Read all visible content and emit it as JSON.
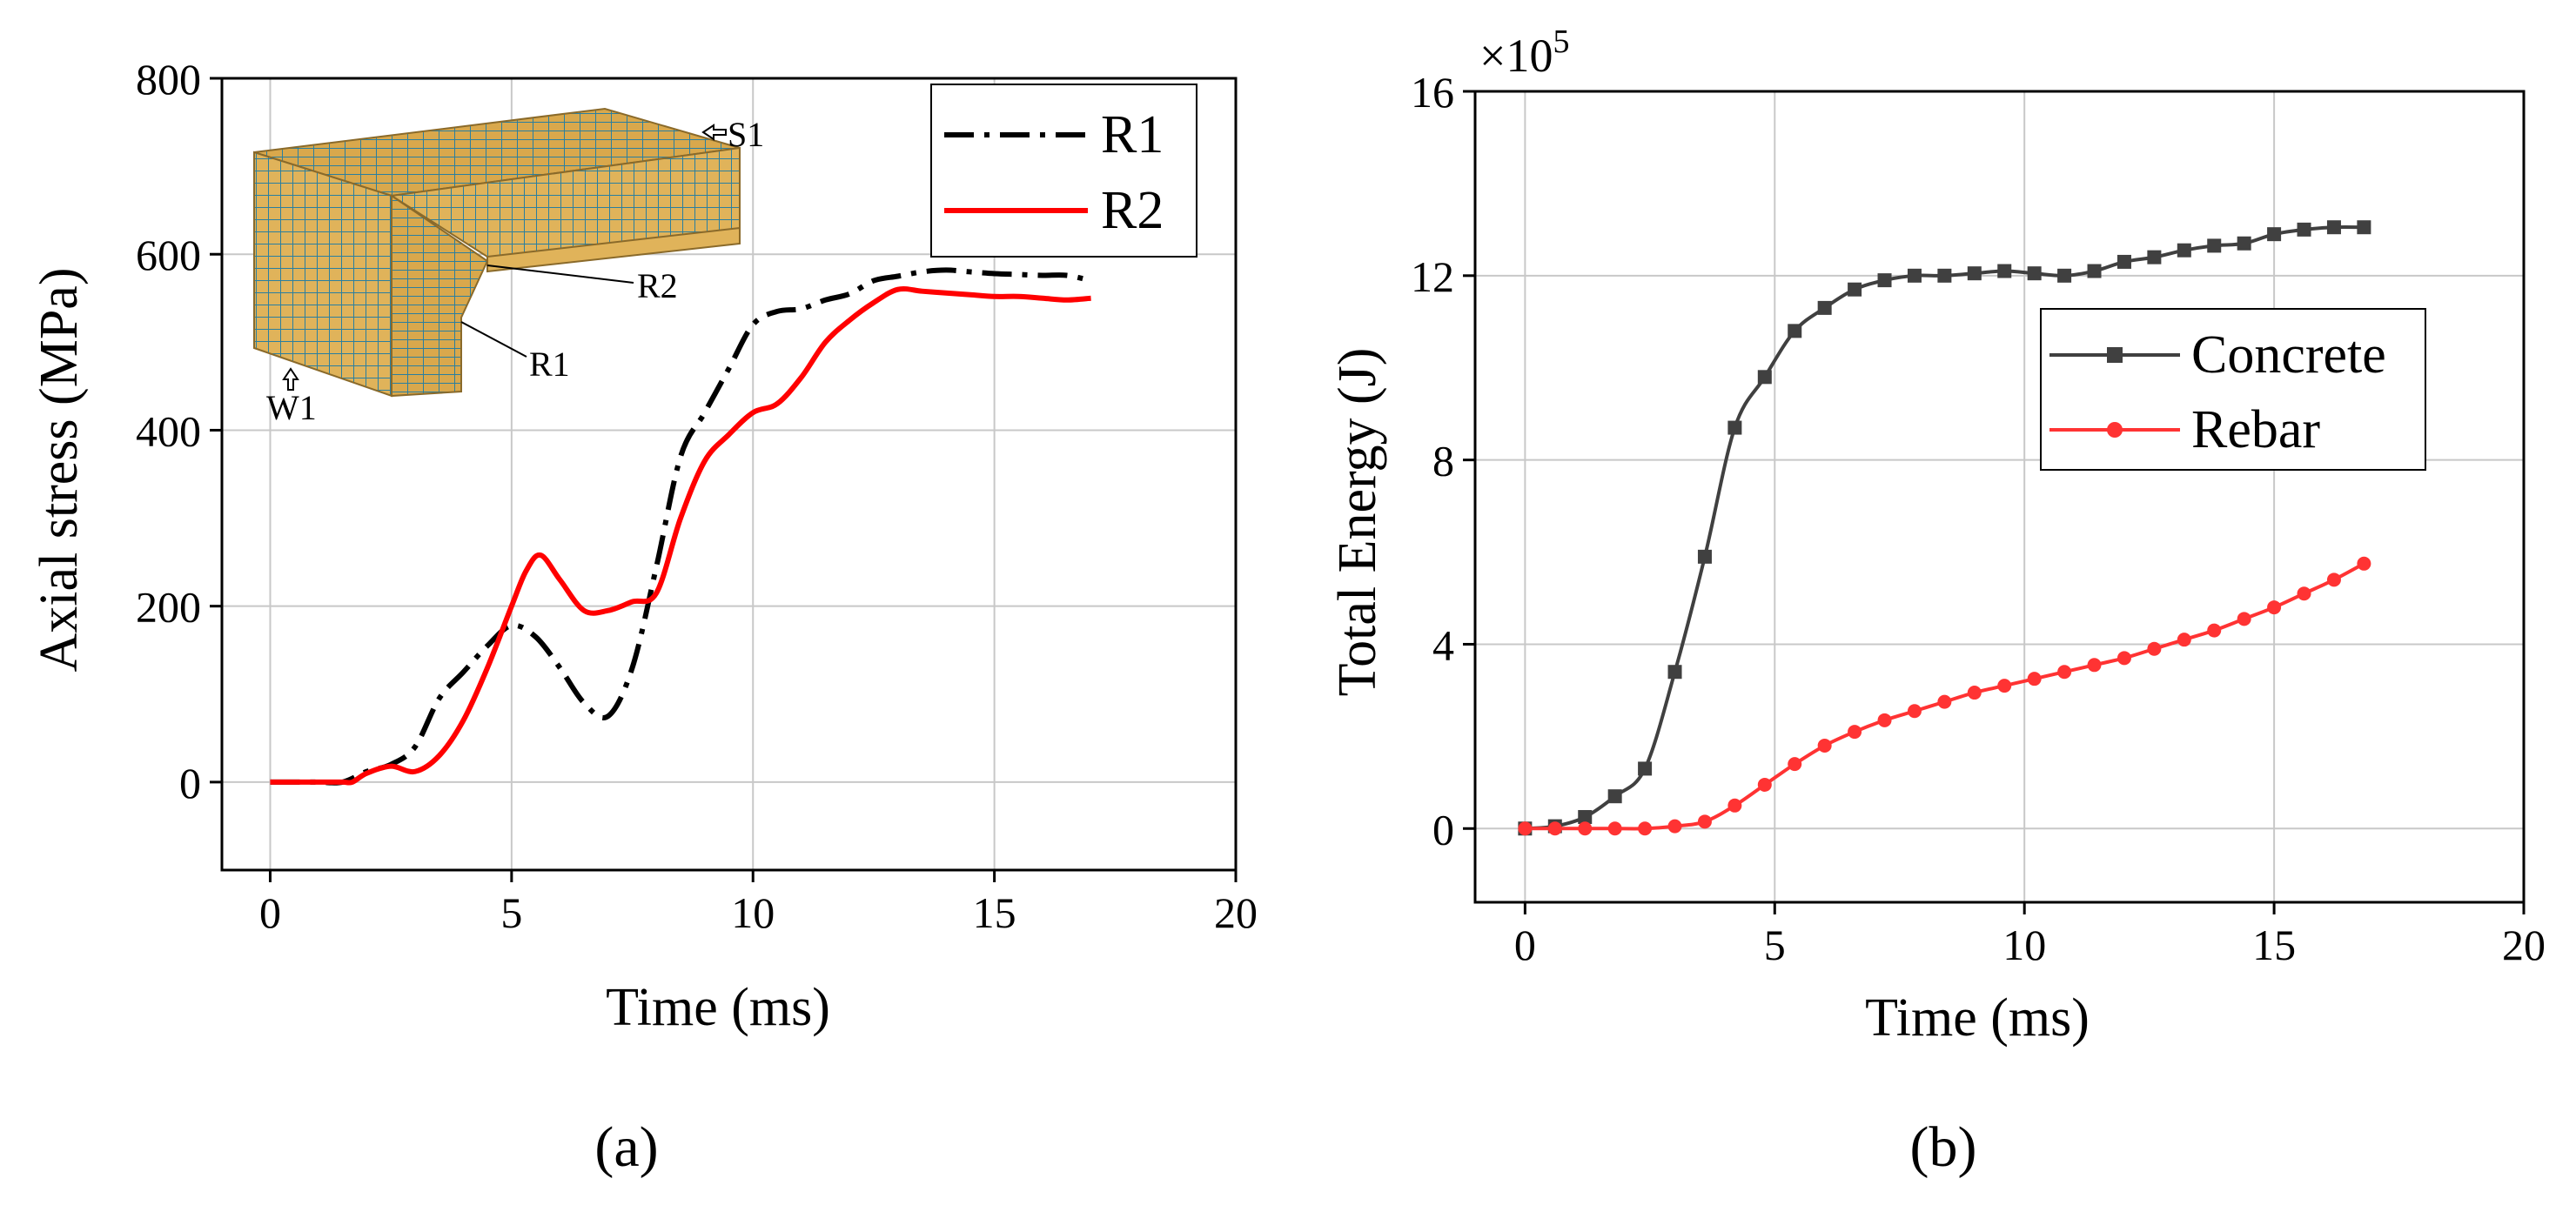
{
  "panel_labels": {
    "a": "(a)",
    "b": "(b)"
  },
  "chart_data": [
    {
      "type": "line",
      "panel": "(a)",
      "xlabel": "Time (ms)",
      "ylabel": "Axial stress (MPa)",
      "xlim": [
        -1,
        20
      ],
      "ylim": [
        -100,
        800
      ],
      "xticks": [
        "0",
        "5",
        "10",
        "15",
        "20"
      ],
      "yticks": [
        "0",
        "200",
        "400",
        "600",
        "800"
      ],
      "grid": true,
      "legend_position": "top-right",
      "inset": {
        "description_labels": {
          "s1": "S1",
          "w1": "W1",
          "r1": "R1",
          "r2": "R2"
        }
      },
      "series": [
        {
          "name": "R1",
          "color": "#000000",
          "dash": "dash-dot",
          "x": [
            0,
            0.5,
            1,
            1.5,
            2,
            2.5,
            3,
            3.5,
            4,
            4.5,
            5,
            5.5,
            6,
            6.5,
            7,
            7.5,
            8,
            8.5,
            9,
            9.5,
            10,
            10.5,
            11,
            11.5,
            12,
            12.5,
            13,
            13.5,
            14,
            14.5,
            15,
            15.5,
            16,
            16.5,
            17
          ],
          "y": [
            0,
            0,
            0,
            0,
            12,
            20,
            40,
            95,
            125,
            155,
            178,
            165,
            130,
            90,
            75,
            130,
            245,
            370,
            420,
            470,
            520,
            535,
            538,
            548,
            555,
            570,
            575,
            580,
            582,
            580,
            578,
            577,
            576,
            576,
            570
          ]
        },
        {
          "name": "R2",
          "color": "#ff0000",
          "dash": "solid",
          "x": [
            0,
            0.5,
            1,
            1.5,
            1.7,
            2,
            2.5,
            3,
            3.5,
            4,
            4.5,
            5,
            5.3,
            5.6,
            6,
            6.5,
            7,
            7.5,
            8,
            8.5,
            9,
            9.5,
            10,
            10.5,
            11,
            11.5,
            12,
            12.5,
            13,
            13.5,
            14,
            14.5,
            15,
            15.5,
            16,
            16.5,
            17
          ],
          "y": [
            0,
            0,
            0,
            0,
            0,
            10,
            18,
            12,
            30,
            70,
            130,
            200,
            240,
            258,
            230,
            195,
            195,
            205,
            215,
            300,
            365,
            395,
            420,
            430,
            460,
            500,
            525,
            545,
            560,
            558,
            556,
            554,
            552,
            552,
            550,
            548,
            550
          ]
        }
      ]
    },
    {
      "type": "line",
      "panel": "(b)",
      "xlabel": "Time (ms)",
      "ylabel": "Total Energy (J)",
      "y_multiplier": "×10",
      "y_multiplier_exponent": "5",
      "xlim": [
        -1,
        20
      ],
      "ylim": [
        -1.6,
        16
      ],
      "xticks": [
        "0",
        "5",
        "10",
        "15",
        "20"
      ],
      "yticks": [
        "0",
        "4",
        "8",
        "12",
        "16"
      ],
      "grid": true,
      "legend_position": "middle-right",
      "series": [
        {
          "name": "Concrete",
          "color": "#404040",
          "marker": "square",
          "x": [
            0,
            0.6,
            1.2,
            1.8,
            2.4,
            3.0,
            3.6,
            4.2,
            4.8,
            5.4,
            6.0,
            6.6,
            7.2,
            7.8,
            8.4,
            9.0,
            9.6,
            10.2,
            10.8,
            11.4,
            12.0,
            12.6,
            13.2,
            13.8,
            14.4,
            15.0,
            15.6,
            16.2,
            16.8
          ],
          "y": [
            0,
            0.05,
            0.25,
            0.7,
            1.3,
            3.4,
            5.9,
            8.7,
            9.8,
            10.8,
            11.3,
            11.7,
            11.9,
            12.0,
            12.0,
            12.05,
            12.1,
            12.05,
            12.0,
            12.1,
            12.3,
            12.4,
            12.55,
            12.65,
            12.7,
            12.9,
            13.0,
            13.05,
            13.05
          ]
        },
        {
          "name": "Rebar",
          "color": "#ff3333",
          "marker": "circle",
          "x": [
            0,
            0.6,
            1.2,
            1.8,
            2.4,
            3.0,
            3.6,
            4.2,
            4.8,
            5.4,
            6.0,
            6.6,
            7.2,
            7.8,
            8.4,
            9.0,
            9.6,
            10.2,
            10.8,
            11.4,
            12.0,
            12.6,
            13.2,
            13.8,
            14.4,
            15.0,
            15.6,
            16.2,
            16.8
          ],
          "y": [
            0,
            0,
            0,
            0,
            0,
            0.05,
            0.15,
            0.5,
            0.95,
            1.4,
            1.8,
            2.1,
            2.35,
            2.55,
            2.75,
            2.95,
            3.1,
            3.25,
            3.4,
            3.55,
            3.7,
            3.9,
            4.1,
            4.3,
            4.55,
            4.8,
            5.1,
            5.4,
            5.75
          ]
        }
      ]
    }
  ]
}
